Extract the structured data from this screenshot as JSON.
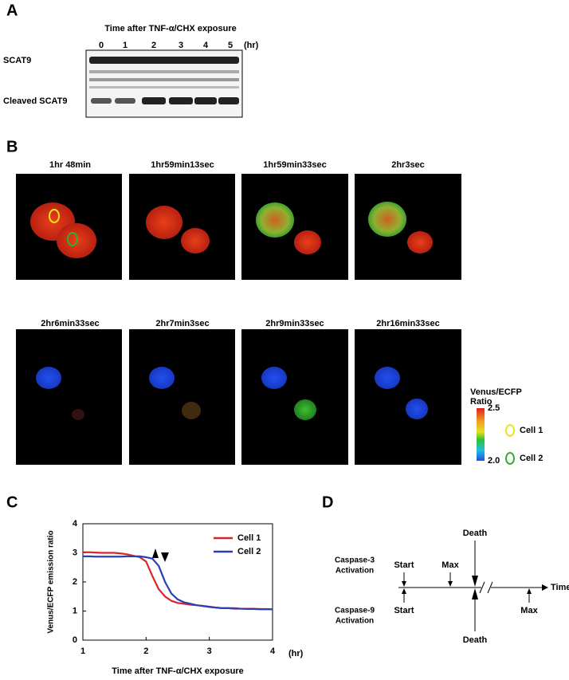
{
  "panel_a": {
    "label": "A",
    "title": "Time after TNF-α/CHX exposure",
    "lanes": [
      "0",
      "1",
      "2",
      "3",
      "4",
      "5"
    ],
    "unit": "(hr)",
    "bands": [
      "SCAT9",
      "Cleaved SCAT9"
    ]
  },
  "panel_b": {
    "label": "B",
    "frames": [
      "1hr 48min",
      "1hr59min13sec",
      "1hr59min33sec",
      "2hr3sec",
      "2hr6min33sec",
      "2hr7min3sec",
      "2hr9min33sec",
      "2hr16min33sec"
    ],
    "colorbar": {
      "title": [
        "Venus/ECFP",
        "Ratio"
      ],
      "max": 2.5,
      "min": {
        "value": 2,
        "label": "2.0"
      }
    },
    "legend": [
      "Cell 1",
      "Cell 2"
    ]
  },
  "chart_data": {
    "type": "line",
    "label": "C",
    "x_label": "Time after TNF-α/CHX exposure",
    "x_unit": "(hr)",
    "y_label": "Venus/ECFP emission ratio",
    "xlim": [
      1,
      4
    ],
    "ylim": [
      0,
      4
    ],
    "xticks": [
      1,
      2,
      3,
      4
    ],
    "yticks": [
      0,
      1,
      2,
      3,
      4
    ],
    "legend": "upper right",
    "x": [
      1.0,
      1.1,
      1.2,
      1.3,
      1.4,
      1.5,
      1.6,
      1.7,
      1.8,
      1.9,
      2.0,
      2.1,
      2.2,
      2.3,
      2.4,
      2.5,
      2.6,
      2.7,
      2.8,
      2.9,
      3.0,
      3.1,
      3.2,
      3.3,
      3.4,
      3.5,
      3.6,
      3.7,
      3.8,
      3.9,
      4.0
    ],
    "series": [
      {
        "name": "Cell 1",
        "color": "#d9262a",
        "values": [
          3.02,
          3.02,
          3.01,
          3.0,
          3.0,
          3.0,
          2.98,
          2.95,
          2.9,
          2.85,
          2.7,
          2.2,
          1.75,
          1.5,
          1.35,
          1.28,
          1.25,
          1.22,
          1.2,
          1.18,
          1.15,
          1.12,
          1.1,
          1.1,
          1.1,
          1.08,
          1.08,
          1.08,
          1.07,
          1.07,
          1.06
        ]
      },
      {
        "name": "Cell 2",
        "color": "#2b3fb5",
        "values": [
          2.88,
          2.88,
          2.87,
          2.87,
          2.87,
          2.87,
          2.87,
          2.88,
          2.88,
          2.88,
          2.85,
          2.8,
          2.55,
          2.0,
          1.6,
          1.4,
          1.3,
          1.25,
          1.2,
          1.17,
          1.14,
          1.12,
          1.1,
          1.1,
          1.08,
          1.08,
          1.07,
          1.07,
          1.06,
          1.06,
          1.06
        ]
      }
    ]
  },
  "panel_d": {
    "label": "D",
    "rows": [
      [
        "Caspase-3",
        "Activation"
      ],
      [
        "Caspase-9",
        "Activation"
      ]
    ],
    "top_events": [
      "Start",
      "Max",
      "Death"
    ],
    "bottom_events": [
      "Start",
      "Death",
      "Max"
    ],
    "axis": "Time"
  }
}
